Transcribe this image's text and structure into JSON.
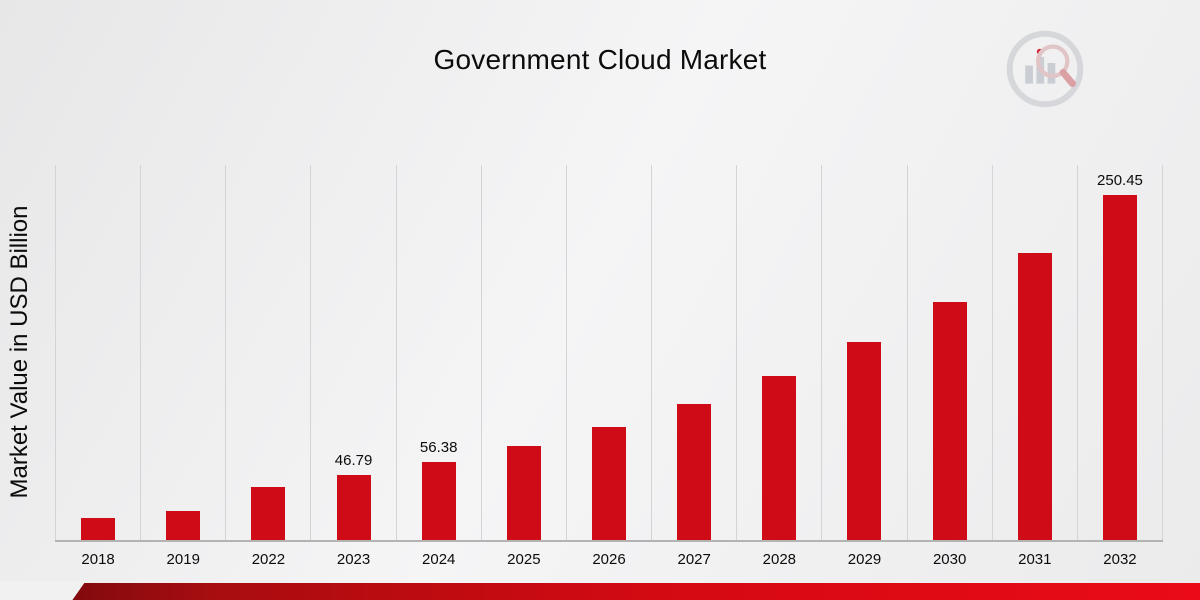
{
  "chart_data": {
    "type": "bar",
    "title": "Government Cloud Market",
    "ylabel": "Market Value in USD Billion",
    "xlabel": "",
    "categories": [
      "2018",
      "2019",
      "2022",
      "2023",
      "2024",
      "2025",
      "2026",
      "2027",
      "2028",
      "2029",
      "2030",
      "2031",
      "2032"
    ],
    "values": [
      15.9,
      21.2,
      38.8,
      46.79,
      56.38,
      67.9,
      81.9,
      98.7,
      118.9,
      143.3,
      172.7,
      208.1,
      250.45
    ],
    "labels": [
      "",
      "",
      "",
      "46.79",
      "56.38",
      "",
      "",
      "",
      "",
      "",
      "",
      "",
      "250.45"
    ],
    "ylim": [
      0,
      272
    ],
    "grid": "vertical-only",
    "legend": "none",
    "bar_color": "#ce0b16",
    "gridline_color": "#d4d4d5",
    "baseline_color": "#b3b3b3",
    "footer_accent_colors": [
      "#6f090c",
      "#a80d10",
      "#d40a12",
      "#ea0b17"
    ]
  },
  "branding": {
    "logo_icon": "bar-chart-magnifier-logo"
  }
}
